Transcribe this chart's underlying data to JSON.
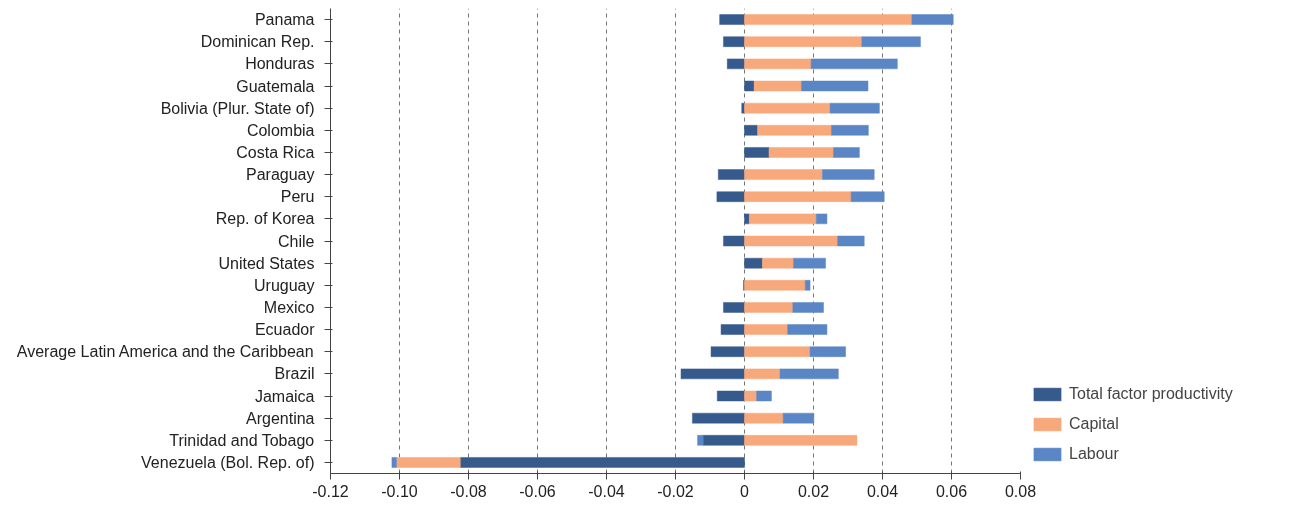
{
  "chart_data": {
    "type": "bar",
    "orientation": "horizontal",
    "stacked": true,
    "categories": [
      "Panama",
      "Dominican Rep.",
      "Honduras",
      "Guatemala",
      "Bolivia (Plur. State of)",
      "Colombia",
      "Costa Rica",
      "Paraguay",
      "Peru",
      "Rep. of Korea",
      "Chile",
      "United States",
      "Uruguay",
      "Mexico",
      "Ecuador",
      "Average Latin America and the Caribbean",
      "Brazil",
      "Jamaica",
      "Argentina",
      "Trinidad and Tobago",
      "Venezuela (Bol. Rep. of)"
    ],
    "series": [
      {
        "name": "Total factor productivity",
        "color": "#375a8c",
        "values": [
          -0.0072,
          -0.0061,
          -0.005,
          0.0028,
          -0.0008,
          0.0038,
          0.0071,
          -0.0076,
          -0.008,
          0.0014,
          -0.0061,
          0.0052,
          -0.0003,
          -0.0061,
          -0.0068,
          -0.0097,
          -0.0184,
          -0.0079,
          -0.0151,
          -0.012,
          -0.0824
        ]
      },
      {
        "name": "Capital",
        "color": "#f7a97c",
        "values": [
          0.0485,
          0.034,
          0.0193,
          0.0137,
          0.0248,
          0.0214,
          0.0187,
          0.0226,
          0.0309,
          0.0194,
          0.027,
          0.009,
          0.0176,
          0.014,
          0.0125,
          0.019,
          0.0103,
          0.0035,
          0.0112,
          0.0326,
          -0.0185
        ]
      },
      {
        "name": "Labour",
        "color": "#5b86c5",
        "values": [
          0.012,
          0.017,
          0.025,
          0.0193,
          0.0143,
          0.0107,
          0.0075,
          0.015,
          0.0096,
          0.0031,
          0.0077,
          0.0093,
          0.0014,
          0.0089,
          0.0114,
          0.0103,
          0.0169,
          0.0043,
          0.0089,
          -0.0016,
          -0.0013
        ]
      }
    ],
    "xlim": [
      -0.12,
      0.08
    ],
    "xticks": [
      -0.12,
      {
        "value": -0.1,
        "label": "-0.10"
      },
      -0.08,
      -0.06,
      -0.04,
      -0.02,
      0,
      0.02,
      0.04,
      0.06,
      0.08
    ],
    "grid": "x",
    "legend": "bottom right"
  }
}
